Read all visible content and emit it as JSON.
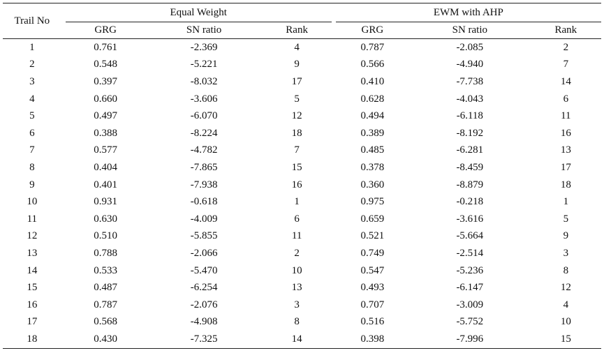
{
  "table": {
    "headers": {
      "trail_no": "Trail No",
      "group1": "Equal Weight",
      "group2": "EWM with AHP",
      "columns": [
        "GRG",
        "SN ratio",
        "Rank",
        "GRG",
        "SN ratio",
        "Rank"
      ]
    },
    "rows": [
      [
        "1",
        "0.761",
        "-2.369",
        "4",
        "0.787",
        "-2.085",
        "2"
      ],
      [
        "2",
        "0.548",
        "-5.221",
        "9",
        "0.566",
        "-4.940",
        "7"
      ],
      [
        "3",
        "0.397",
        "-8.032",
        "17",
        "0.410",
        "-7.738",
        "14"
      ],
      [
        "4",
        "0.660",
        "-3.606",
        "5",
        "0.628",
        "-4.043",
        "6"
      ],
      [
        "5",
        "0.497",
        "-6.070",
        "12",
        "0.494",
        "-6.118",
        "11"
      ],
      [
        "6",
        "0.388",
        "-8.224",
        "18",
        "0.389",
        "-8.192",
        "16"
      ],
      [
        "7",
        "0.577",
        "-4.782",
        "7",
        "0.485",
        "-6.281",
        "13"
      ],
      [
        "8",
        "0.404",
        "-7.865",
        "15",
        "0.378",
        "-8.459",
        "17"
      ],
      [
        "9",
        "0.401",
        "-7.938",
        "16",
        "0.360",
        "-8.879",
        "18"
      ],
      [
        "10",
        "0.931",
        "-0.618",
        "1",
        "0.975",
        "-0.218",
        "1"
      ],
      [
        "11",
        "0.630",
        "-4.009",
        "6",
        "0.659",
        "-3.616",
        "5"
      ],
      [
        "12",
        "0.510",
        "-5.855",
        "11",
        "0.521",
        "-5.664",
        "9"
      ],
      [
        "13",
        "0.788",
        "-2.066",
        "2",
        "0.749",
        "-2.514",
        "3"
      ],
      [
        "14",
        "0.533",
        "-5.470",
        "10",
        "0.547",
        "-5.236",
        "8"
      ],
      [
        "15",
        "0.487",
        "-6.254",
        "13",
        "0.493",
        "-6.147",
        "12"
      ],
      [
        "16",
        "0.787",
        "-2.076",
        "3",
        "0.707",
        "-3.009",
        "4"
      ],
      [
        "17",
        "0.568",
        "-4.908",
        "8",
        "0.516",
        "-5.752",
        "10"
      ],
      [
        "18",
        "0.430",
        "-7.325",
        "14",
        "0.398",
        "-7.996",
        "15"
      ]
    ]
  }
}
